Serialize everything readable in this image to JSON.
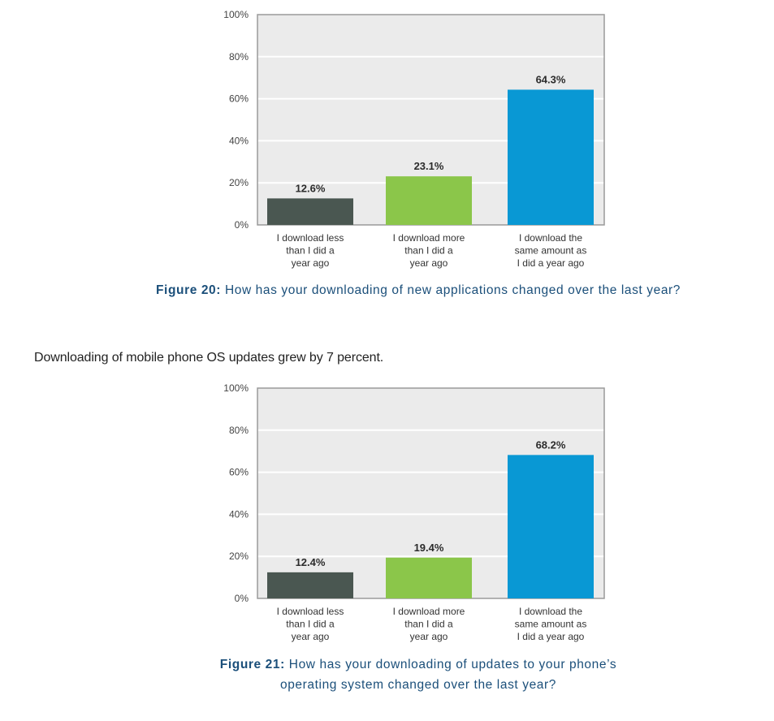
{
  "chart_data": [
    {
      "type": "bar",
      "categories": [
        [
          "I download less",
          "than I did a",
          "year ago"
        ],
        [
          "I download more",
          "than I did a",
          "year ago"
        ],
        [
          "I download the",
          "same amount as",
          "I did a year ago"
        ]
      ],
      "values": [
        12.6,
        23.1,
        64.3
      ],
      "value_labels": [
        "12.6%",
        "23.1%",
        "64.3%"
      ],
      "bar_colors": [
        "#4a5751",
        "#8bc64a",
        "#0998d4"
      ],
      "ylim": [
        0,
        100
      ],
      "yticks": [
        0,
        20,
        40,
        60,
        80,
        100
      ],
      "ytick_labels": [
        "0%",
        "20%",
        "40%",
        "60%",
        "80%",
        "100%"
      ],
      "xlabel": "",
      "ylabel": "",
      "grid": true,
      "caption_prefix": "Figure 20:",
      "caption_text": "How has your downloading of new applications changed over the last year?"
    },
    {
      "type": "bar",
      "categories": [
        [
          "I download less",
          "than I did a",
          "year ago"
        ],
        [
          "I download more",
          "than I did a",
          "year ago"
        ],
        [
          "I download the",
          "same amount as",
          "I did a year ago"
        ]
      ],
      "values": [
        12.4,
        19.4,
        68.2
      ],
      "value_labels": [
        "12.4%",
        "19.4%",
        "68.2%"
      ],
      "bar_colors": [
        "#4a5751",
        "#8bc64a",
        "#0998d4"
      ],
      "ylim": [
        0,
        100
      ],
      "yticks": [
        0,
        20,
        40,
        60,
        80,
        100
      ],
      "ytick_labels": [
        "0%",
        "20%",
        "40%",
        "60%",
        "80%",
        "100%"
      ],
      "xlabel": "",
      "ylabel": "",
      "grid": true,
      "caption_prefix": "Figure 21:",
      "caption_text_line1": "How has your downloading of updates to your phone’s",
      "caption_text_line2": "operating system changed over the last year?"
    }
  ],
  "body_text": "Downloading of mobile phone OS updates grew by 7 percent.",
  "colors": {
    "plot_bg": "#ebebeb",
    "grid": "#ffffff",
    "frame": "#9a9a9a",
    "caption": "#1b4f7a"
  }
}
